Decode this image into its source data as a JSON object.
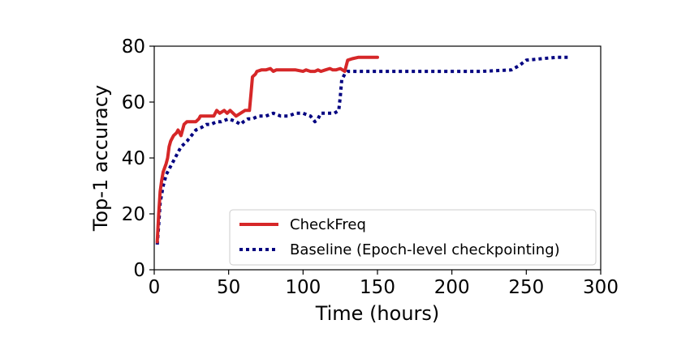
{
  "chart_data": {
    "type": "line",
    "title": "",
    "xlabel": "Time (hours)",
    "ylabel": "Top-1 accuracy",
    "xlim": [
      0,
      300
    ],
    "ylim": [
      0,
      80
    ],
    "xticks": [
      0,
      50,
      100,
      150,
      200,
      250,
      300
    ],
    "yticks": [
      0,
      20,
      40,
      60,
      80
    ],
    "grid": false,
    "legend_position": "lower-right",
    "series": [
      {
        "name": "CheckFreq",
        "color": "#d62728",
        "style": "solid",
        "x": [
          2,
          3,
          4,
          5,
          6,
          8,
          9,
          10,
          11,
          12,
          13,
          15,
          16,
          17,
          18,
          20,
          22,
          23,
          25,
          27,
          28,
          30,
          31,
          35,
          38,
          40,
          42,
          44,
          47,
          49,
          51,
          53,
          55,
          58,
          61,
          64,
          65,
          66,
          67,
          68,
          69,
          72,
          75,
          78,
          80,
          82,
          85,
          90,
          95,
          100,
          102,
          105,
          108,
          110,
          112,
          115,
          118,
          120,
          122,
          125,
          128,
          129,
          130,
          133,
          137,
          141,
          146,
          150
        ],
        "y": [
          10,
          20,
          28,
          32,
          35,
          38,
          40,
          44,
          46,
          47,
          48,
          49,
          50,
          49,
          48,
          52,
          53,
          53,
          53,
          53,
          53,
          54,
          55,
          55,
          55,
          55,
          57,
          56,
          57,
          56,
          57,
          56,
          55,
          56,
          57,
          57,
          63,
          69,
          69.5,
          70,
          71,
          71.5,
          71.5,
          72,
          71,
          71.5,
          71.5,
          71.5,
          71.5,
          71,
          71.5,
          71,
          71,
          71.5,
          71,
          71.5,
          72,
          71.5,
          71.5,
          72,
          71,
          73,
          75,
          75.5,
          76,
          76,
          76,
          76
        ]
      },
      {
        "name": "Baseline (Epoch-level checkpointing)",
        "color": "#000080",
        "style": "dotted",
        "x": [
          2,
          3,
          4,
          6,
          8,
          10,
          12,
          14,
          16,
          18,
          20,
          22,
          25,
          28,
          32,
          35,
          38,
          42,
          45,
          50,
          55,
          58,
          60,
          63,
          66,
          70,
          75,
          80,
          85,
          90,
          95,
          100,
          105,
          108,
          110,
          112,
          115,
          118,
          121,
          124,
          125,
          126,
          128,
          130,
          135,
          150,
          175,
          200,
          220,
          240,
          245,
          250,
          260,
          270,
          280
        ],
        "y": [
          9,
          16,
          24,
          30,
          34,
          36,
          38,
          40,
          42,
          44,
          45,
          46,
          48,
          50,
          51,
          52,
          52,
          53,
          53,
          54,
          53,
          52,
          53,
          54,
          54,
          55,
          55,
          56,
          55,
          55,
          56,
          56,
          55,
          53,
          54,
          56,
          56,
          56,
          56,
          57,
          62,
          68,
          70,
          71,
          71,
          71,
          71,
          71,
          71,
          71.5,
          73,
          75,
          75.5,
          76,
          76
        ]
      }
    ]
  }
}
